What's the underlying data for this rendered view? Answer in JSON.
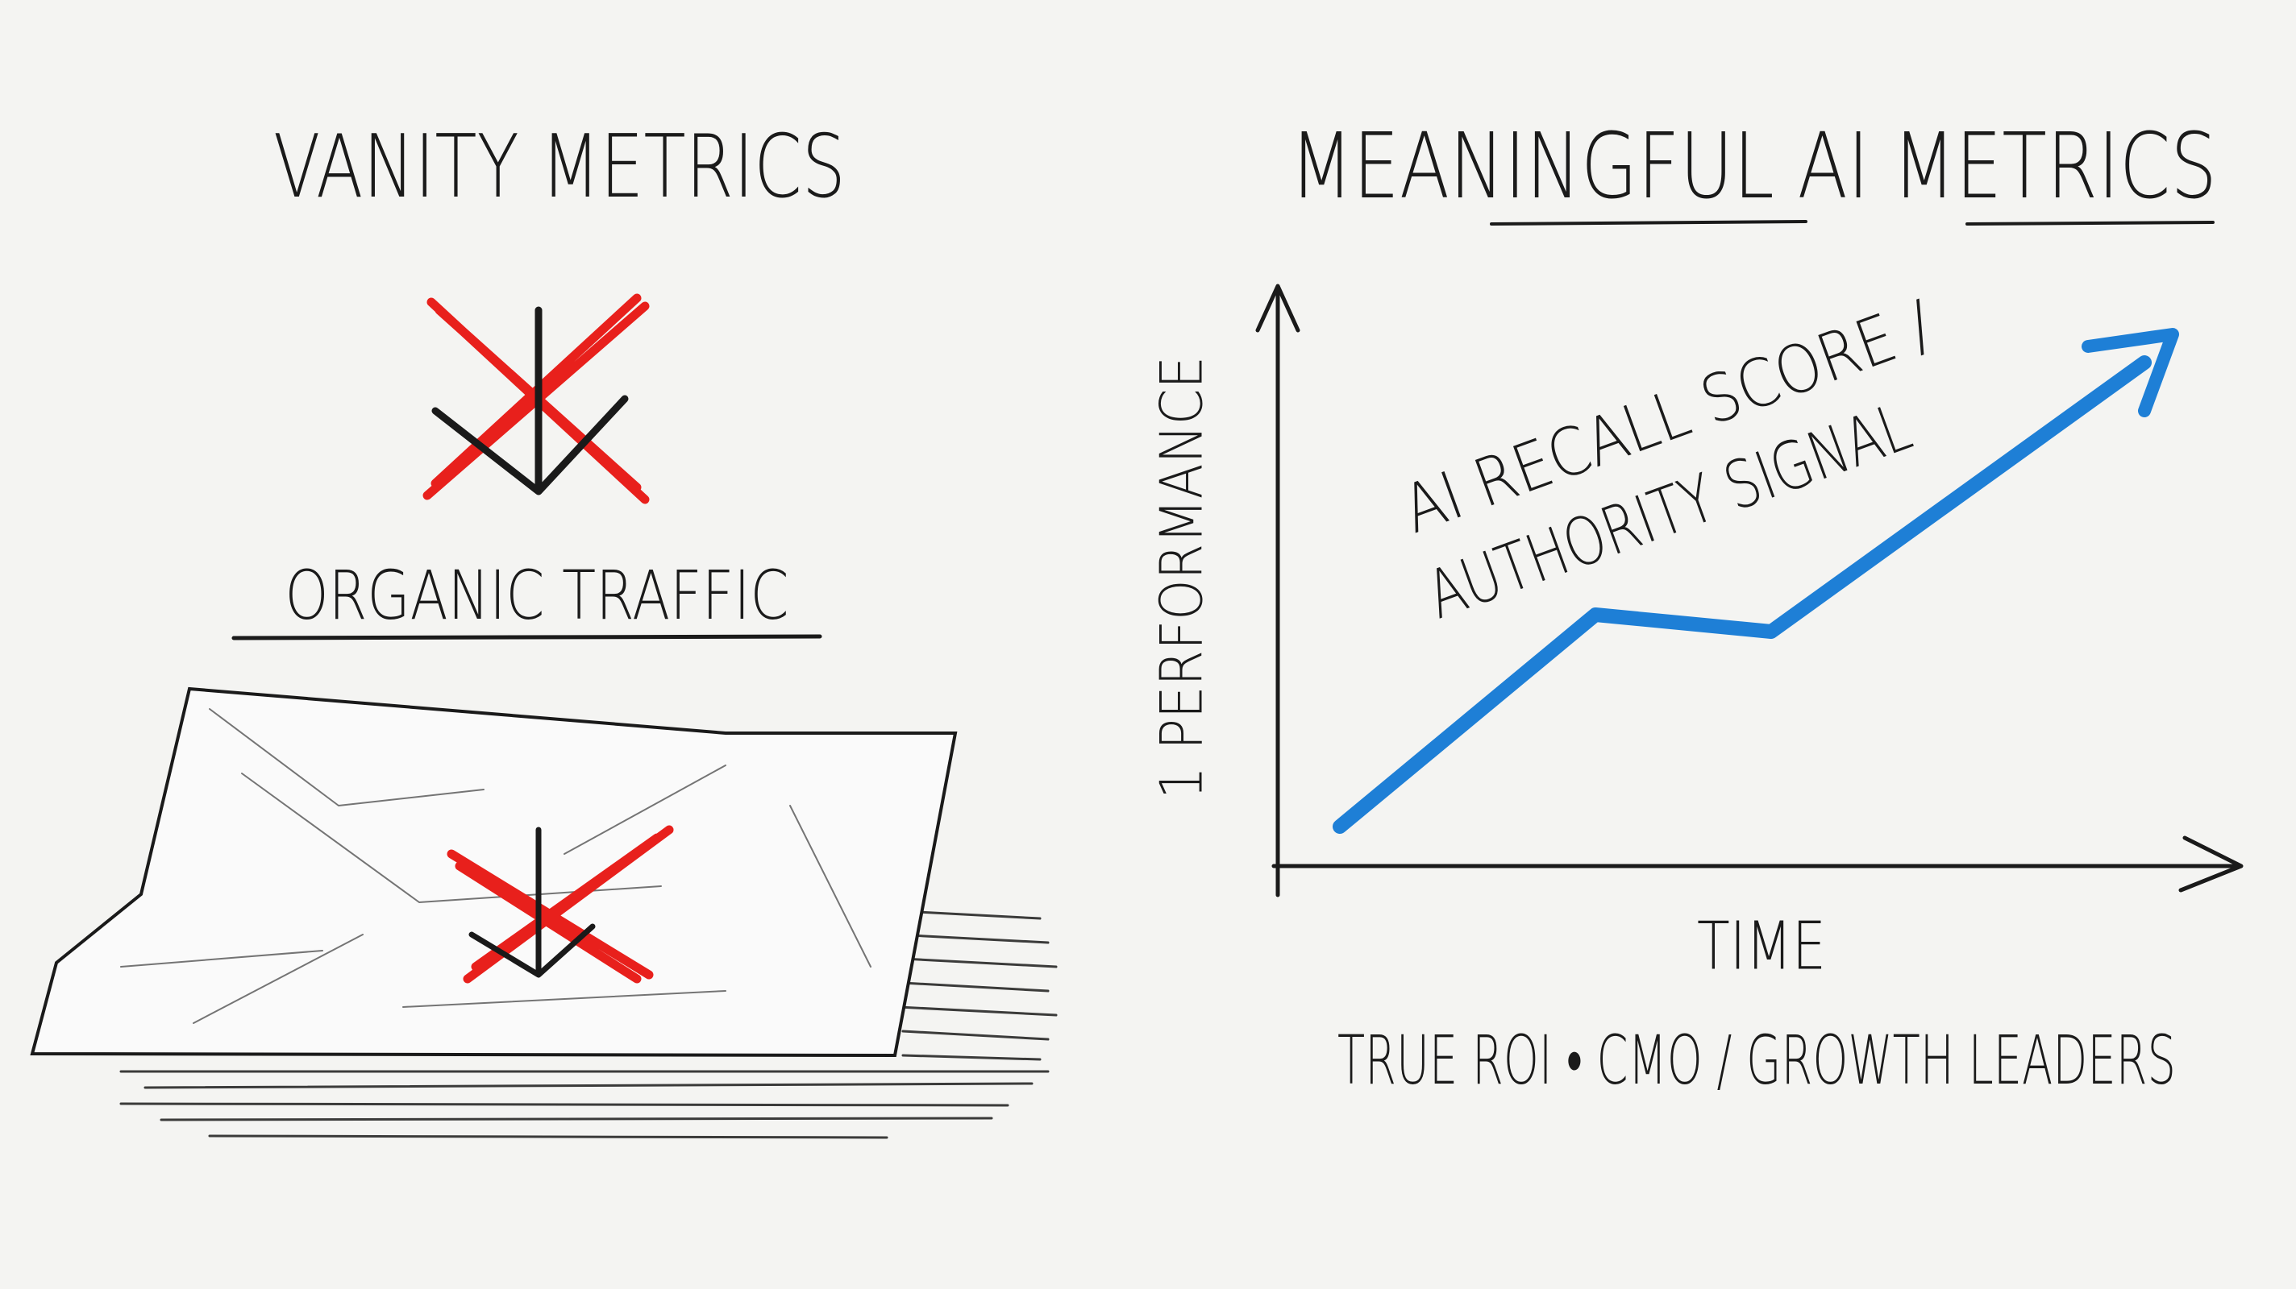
{
  "left": {
    "title": "VANITY METRICS",
    "label": "ORGANIC TRAFFIC"
  },
  "right": {
    "title": "MEANINGFUL AI METRICS",
    "y_axis_label": "1 PERFORMANCE",
    "x_axis_label": "TIME",
    "line_label": [
      "AI RECALL SCORE /",
      "AUTHORITY SIGNAL"
    ],
    "footer": "TRUE ROI • CMO / GROWTH LEADERS"
  }
}
